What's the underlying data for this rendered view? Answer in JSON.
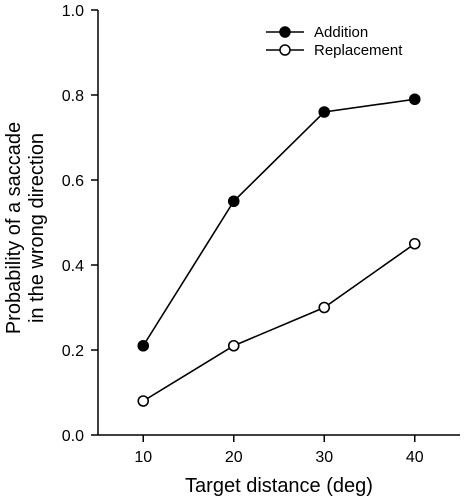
{
  "chart_data": {
    "type": "line",
    "x": [
      10,
      20,
      30,
      40
    ],
    "xlabel": "Target distance (deg)",
    "ylabel_lines": [
      "Probability of a saccade",
      "in the wrong direction"
    ],
    "xlim": [
      5,
      45
    ],
    "ylim": [
      0,
      1.0
    ],
    "xticks": [
      "10",
      "20",
      "30",
      "40"
    ],
    "yticks": [
      "0.0",
      "0.2",
      "0.4",
      "0.6",
      "0.8",
      "1.0"
    ],
    "grid": false,
    "legend_position": "top-right",
    "series": [
      {
        "name": "Addition",
        "values": [
          0.21,
          0.55,
          0.76,
          0.79
        ],
        "marker": "filled-circle",
        "color": "#000000"
      },
      {
        "name": "Replacement",
        "values": [
          0.08,
          0.21,
          0.3,
          0.45
        ],
        "marker": "open-circle",
        "color": "#000000"
      }
    ]
  }
}
